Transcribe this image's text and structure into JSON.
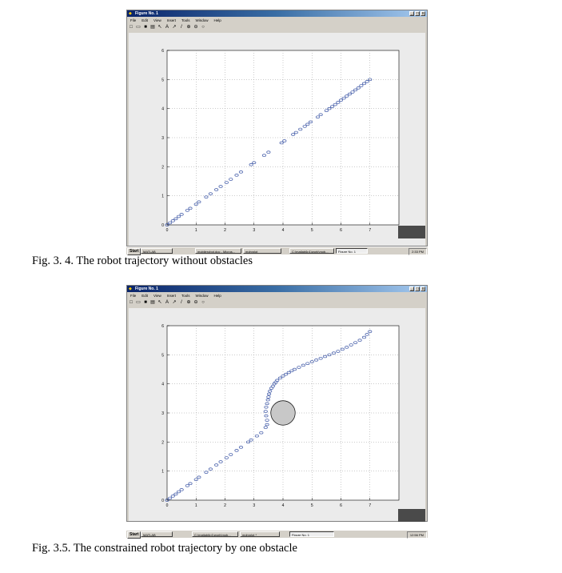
{
  "figures": [
    {
      "window": {
        "title": "Figure No. 1",
        "controls": [
          "_",
          "□",
          "x"
        ],
        "menu": [
          "File",
          "Edit",
          "View",
          "Insert",
          "Tools",
          "Window",
          "Help"
        ],
        "toolbar_icons": [
          "new-file-icon",
          "open-folder-icon",
          "save-icon",
          "print-icon",
          "arrow-icon",
          "text-icon",
          "arrow-line-icon",
          "line-icon",
          "zoom-in-icon",
          "zoom-out-icon",
          "rotate-icon"
        ]
      },
      "taskbar": {
        "start": "Start",
        "items": [
          {
            "label": "MATLAB",
            "active": false
          },
          {
            "label": "mobilerobot.doc - Micros...",
            "active": false
          },
          {
            "label": "mdrvplot",
            "active": false
          },
          {
            "label": "C:\\matlab6p1\\work\\mob...",
            "active": false
          },
          {
            "label": "Figure No. 1",
            "active": true
          }
        ],
        "clock": "2:33 PM"
      },
      "caption": "Fig. 3. 4. The robot trajectory without obstacles",
      "chart_data": {
        "type": "scatter",
        "marker": "o",
        "marker_color": "#3a54a4",
        "xlim": [
          0,
          8
        ],
        "ylim": [
          0,
          6
        ],
        "xticks": [
          "0",
          "1",
          "2",
          "3",
          "4",
          "5",
          "6",
          "7"
        ],
        "yticks": [
          "0",
          "1",
          "2",
          "3",
          "4",
          "5",
          "6"
        ],
        "grid": true,
        "title": "",
        "xlabel": "",
        "ylabel": "",
        "x": [
          0.0,
          0.1,
          0.2,
          0.3,
          0.4,
          0.5,
          0.7,
          0.8,
          1.0,
          1.1,
          1.35,
          1.5,
          1.7,
          1.85,
          2.05,
          2.2,
          2.4,
          2.55,
          2.9,
          3.0,
          3.35,
          3.5,
          3.95,
          4.05,
          4.35,
          4.45,
          4.6,
          4.75,
          4.85,
          4.95,
          5.2,
          5.3,
          5.5,
          5.6,
          5.7,
          5.8,
          5.9,
          6.0,
          6.1,
          6.2,
          6.3,
          6.4,
          6.5,
          6.6,
          6.7,
          6.8,
          6.9,
          7.0
        ],
        "y": [
          0.0,
          0.07,
          0.14,
          0.21,
          0.29,
          0.36,
          0.5,
          0.57,
          0.71,
          0.79,
          0.96,
          1.07,
          1.21,
          1.32,
          1.46,
          1.57,
          1.71,
          1.82,
          2.07,
          2.14,
          2.39,
          2.5,
          2.82,
          2.89,
          3.11,
          3.18,
          3.29,
          3.39,
          3.46,
          3.54,
          3.71,
          3.79,
          3.93,
          4.0,
          4.07,
          4.14,
          4.21,
          4.29,
          4.36,
          4.43,
          4.5,
          4.57,
          4.64,
          4.71,
          4.79,
          4.86,
          4.93,
          5.0
        ]
      }
    },
    {
      "window": {
        "title": "Figure No. 1",
        "controls": [
          "_",
          "□",
          "x"
        ],
        "menu": [
          "File",
          "Edit",
          "View",
          "Insert",
          "Tools",
          "Window",
          "Help"
        ],
        "toolbar_icons": [
          "new-file-icon",
          "open-folder-icon",
          "save-icon",
          "print-icon",
          "arrow-icon",
          "text-icon",
          "arrow-line-icon",
          "line-icon",
          "zoom-in-icon",
          "zoom-out-icon",
          "rotate-icon"
        ]
      },
      "taskbar": {
        "start": "Start",
        "items": [
          {
            "label": "MATLAB",
            "active": false
          },
          {
            "label": "C:\\matlab6p1\\work\\mob...",
            "active": false
          },
          {
            "label": "mdrvplot *",
            "active": false
          },
          {
            "label": "Figure No. 1",
            "active": true
          }
        ],
        "clock": "12:56 PM"
      },
      "caption": "Fig. 3.5. The constrained robot trajectory by one obstacle",
      "chart_data": {
        "type": "scatter",
        "marker": "o",
        "marker_color": "#3a54a4",
        "xlim": [
          0,
          8
        ],
        "ylim": [
          0,
          6
        ],
        "xticks": [
          "0",
          "1",
          "2",
          "3",
          "4",
          "5",
          "6",
          "7"
        ],
        "yticks": [
          "0",
          "1",
          "2",
          "3",
          "4",
          "5",
          "6"
        ],
        "grid": true,
        "title": "",
        "xlabel": "",
        "ylabel": "",
        "obstacle": {
          "center": [
            4.0,
            3.0
          ],
          "radius": 0.42,
          "fill": "#c8c8c8"
        },
        "x": [
          0.0,
          0.1,
          0.2,
          0.3,
          0.4,
          0.5,
          0.7,
          0.8,
          1.0,
          1.1,
          1.35,
          1.5,
          1.7,
          1.85,
          2.05,
          2.2,
          2.4,
          2.55,
          2.8,
          2.9,
          3.1,
          3.25,
          3.4,
          3.45,
          3.45,
          3.42,
          3.4,
          3.42,
          3.45,
          3.48,
          3.5,
          3.52,
          3.55,
          3.6,
          3.65,
          3.7,
          3.75,
          3.8,
          3.9,
          4.0,
          4.1,
          4.2,
          4.3,
          4.4,
          4.55,
          4.7,
          4.85,
          5.0,
          5.15,
          5.3,
          5.45,
          5.6,
          5.75,
          5.9,
          6.05,
          6.2,
          6.35,
          6.5,
          6.65,
          6.8,
          6.9,
          7.0
        ],
        "y": [
          0.0,
          0.07,
          0.14,
          0.21,
          0.29,
          0.36,
          0.5,
          0.57,
          0.71,
          0.79,
          0.96,
          1.07,
          1.21,
          1.32,
          1.46,
          1.57,
          1.71,
          1.82,
          2.0,
          2.07,
          2.21,
          2.32,
          2.5,
          2.6,
          2.75,
          2.9,
          3.05,
          3.2,
          3.32,
          3.45,
          3.55,
          3.65,
          3.75,
          3.85,
          3.92,
          4.0,
          4.06,
          4.12,
          4.2,
          4.27,
          4.33,
          4.39,
          4.45,
          4.5,
          4.57,
          4.64,
          4.7,
          4.76,
          4.82,
          4.88,
          4.94,
          5.0,
          5.06,
          5.12,
          5.19,
          5.26,
          5.34,
          5.42,
          5.5,
          5.6,
          5.7,
          5.8
        ]
      }
    }
  ]
}
